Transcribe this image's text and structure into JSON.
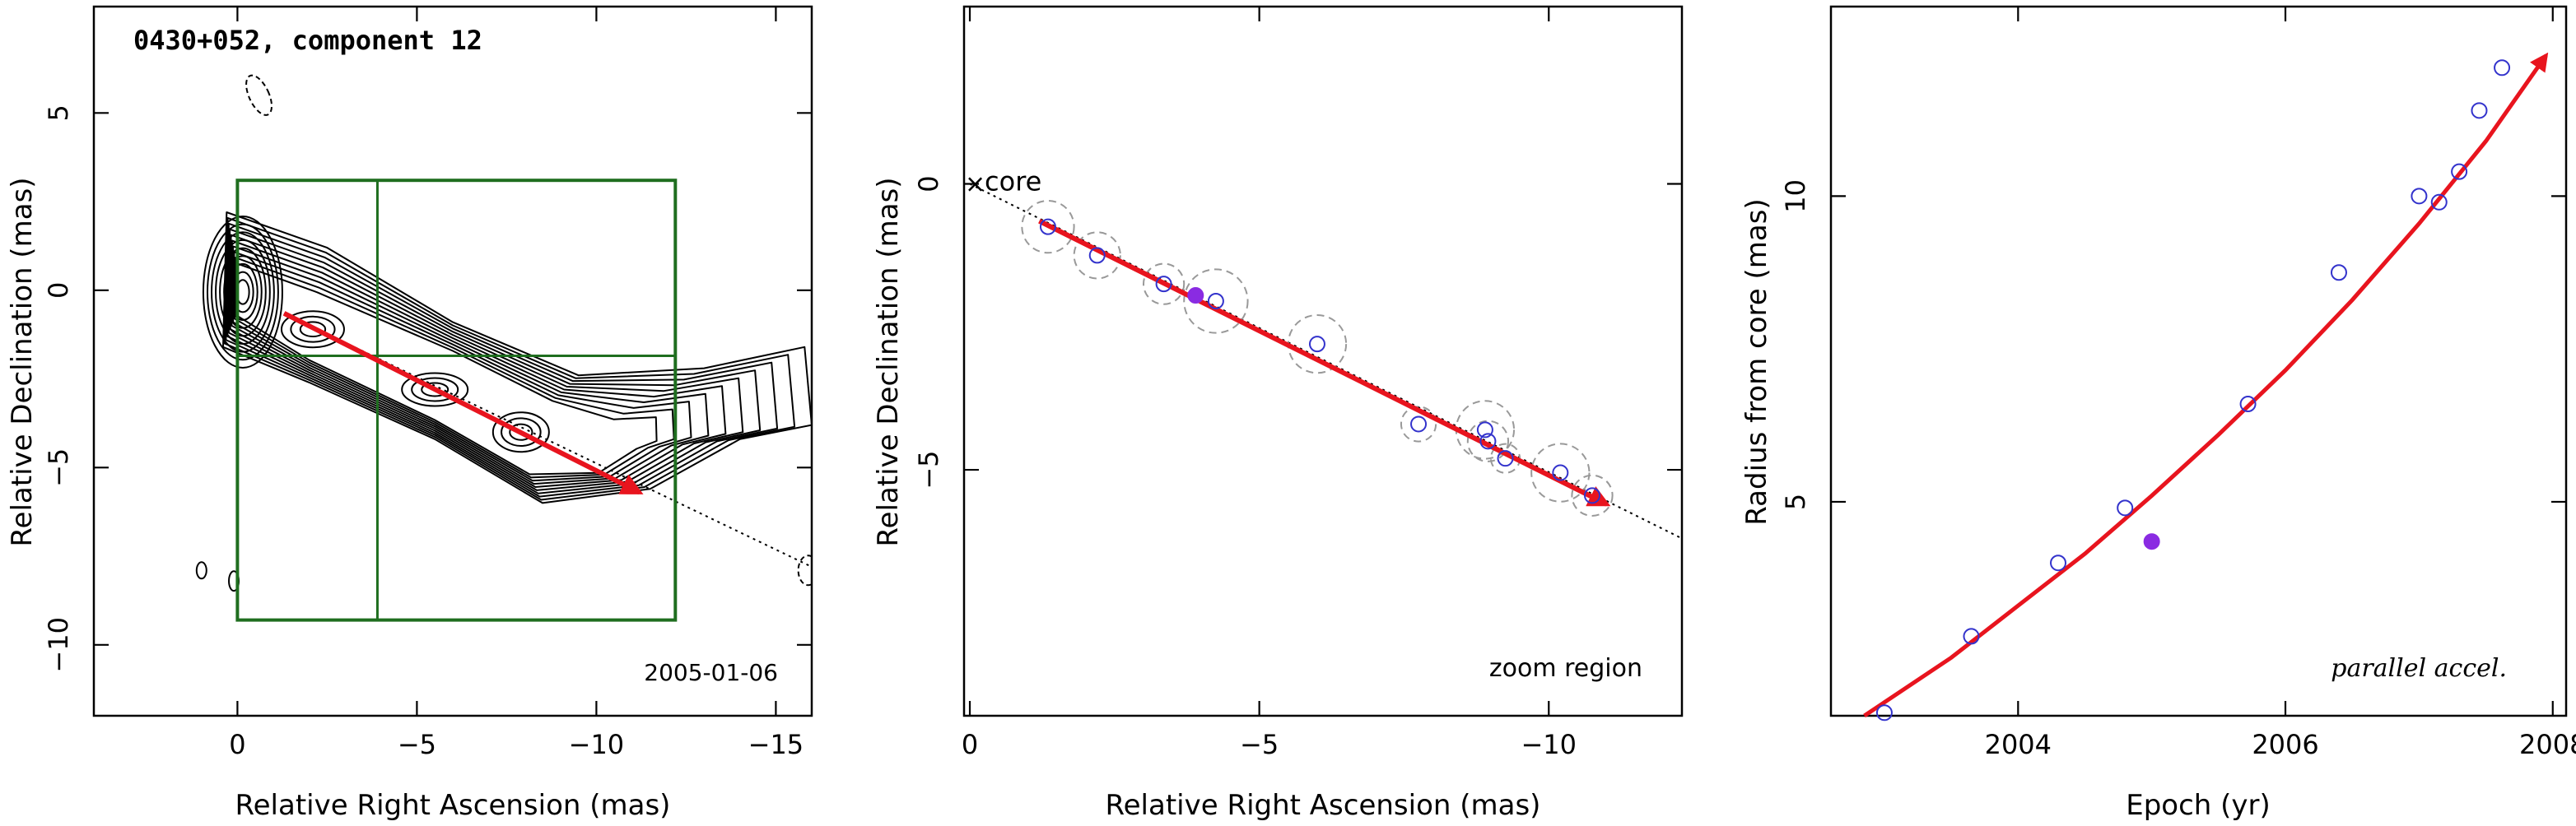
{
  "chart_data": [
    {
      "type": "contour-map",
      "title": "0430+052, component 12",
      "xlabel": "Relative Right Ascension (mas)",
      "ylabel": "Relative Declination (mas)",
      "xlim": [
        4,
        -16
      ],
      "ylim": [
        -12,
        8
      ],
      "xticks": [
        0,
        -5,
        -10,
        -15
      ],
      "yticks": [
        5,
        0,
        -5,
        -10
      ],
      "annotation": "2005-01-06",
      "zoom_box": {
        "x": [
          0,
          -12.2
        ],
        "y": [
          3.1,
          -9.3
        ],
        "divider_x": -3.9,
        "divider_y": -1.85
      },
      "velocity_arrow": {
        "from": [
          -1.3,
          -0.65
        ],
        "to": [
          -11.2,
          -5.7
        ]
      },
      "trajectory_line": {
        "from": [
          -1.3,
          -0.65
        ],
        "to": [
          -16,
          -7.8
        ]
      },
      "contour_color": "#000000",
      "box_color": "#1f6e1f",
      "arrow_color": "#e8141e"
    },
    {
      "type": "scatter",
      "title": "",
      "xlabel": "Relative Right Ascension (mas)",
      "ylabel": "Relative Declination (mas)",
      "xlim": [
        0.1,
        -12.3
      ],
      "ylim": [
        3.1,
        -9.3
      ],
      "xticks": [
        0,
        -5,
        -10
      ],
      "yticks": [
        0,
        -5
      ],
      "annotation": "zoom region",
      "core_label": "core",
      "points": [
        {
          "x": -1.35,
          "y": -0.75,
          "err": 0.45
        },
        {
          "x": -2.2,
          "y": -1.25,
          "err": 0.4
        },
        {
          "x": -3.35,
          "y": -1.75,
          "err": 0.35
        },
        {
          "x": -4.25,
          "y": -2.05,
          "err": 0.55
        },
        {
          "x": -6.0,
          "y": -2.8,
          "err": 0.5
        },
        {
          "x": -7.75,
          "y": -4.2,
          "err": 0.3
        },
        {
          "x": -8.9,
          "y": -4.3,
          "err": 0.5
        },
        {
          "x": -8.95,
          "y": -4.5,
          "err": 0.35
        },
        {
          "x": -9.25,
          "y": -4.8,
          "err": 0.25
        },
        {
          "x": -10.2,
          "y": -5.05,
          "err": 0.5
        },
        {
          "x": -10.75,
          "y": -5.45,
          "err": 0.35
        }
      ],
      "filled_point": {
        "x": -3.9,
        "y": -1.95
      },
      "velocity_arrow": {
        "from": [
          -1.2,
          -0.65
        ],
        "to": [
          -11.0,
          -5.6
        ]
      },
      "trajectory_line": {
        "from": [
          0,
          0
        ],
        "to": [
          -12.3,
          -6.2
        ]
      },
      "point_color": "#3333cc",
      "filled_color": "#8a2be2",
      "error_color": "#999999",
      "arrow_color": "#e8141e"
    },
    {
      "type": "scatter",
      "title": "",
      "xlabel": "Epoch (yr)",
      "ylabel": "Radius from core (mas)",
      "xlim": [
        2002.6,
        2008.1
      ],
      "ylim": [
        1.5,
        13.1
      ],
      "xticks": [
        2004,
        2006,
        2008
      ],
      "xticklabels": [
        "2004",
        "2006",
        "2008"
      ],
      "yticks": [
        5,
        10
      ],
      "annotation": "parallel accel.",
      "points": [
        {
          "x": 2003.0,
          "y": 1.55
        },
        {
          "x": 2003.65,
          "y": 2.8
        },
        {
          "x": 2004.3,
          "y": 4.0
        },
        {
          "x": 2004.8,
          "y": 4.9
        },
        {
          "x": 2005.72,
          "y": 6.6
        },
        {
          "x": 2006.4,
          "y": 8.75
        },
        {
          "x": 2007.0,
          "y": 10.0
        },
        {
          "x": 2007.15,
          "y": 9.9
        },
        {
          "x": 2007.3,
          "y": 10.4
        },
        {
          "x": 2007.45,
          "y": 11.4
        },
        {
          "x": 2007.62,
          "y": 12.1
        }
      ],
      "filled_point": {
        "x": 2005.0,
        "y": 4.35
      },
      "fit_curve": {
        "x": [
          2002.85,
          2003.5,
          2004.0,
          2004.5,
          2005.0,
          2005.5,
          2006.0,
          2006.5,
          2007.0,
          2007.5,
          2007.95
        ],
        "y": [
          1.5,
          2.45,
          3.3,
          4.15,
          5.1,
          6.1,
          7.15,
          8.3,
          9.55,
          10.9,
          12.3
        ]
      },
      "point_color": "#3333cc",
      "filled_color": "#8a2be2",
      "arrow_color": "#e8141e"
    }
  ]
}
